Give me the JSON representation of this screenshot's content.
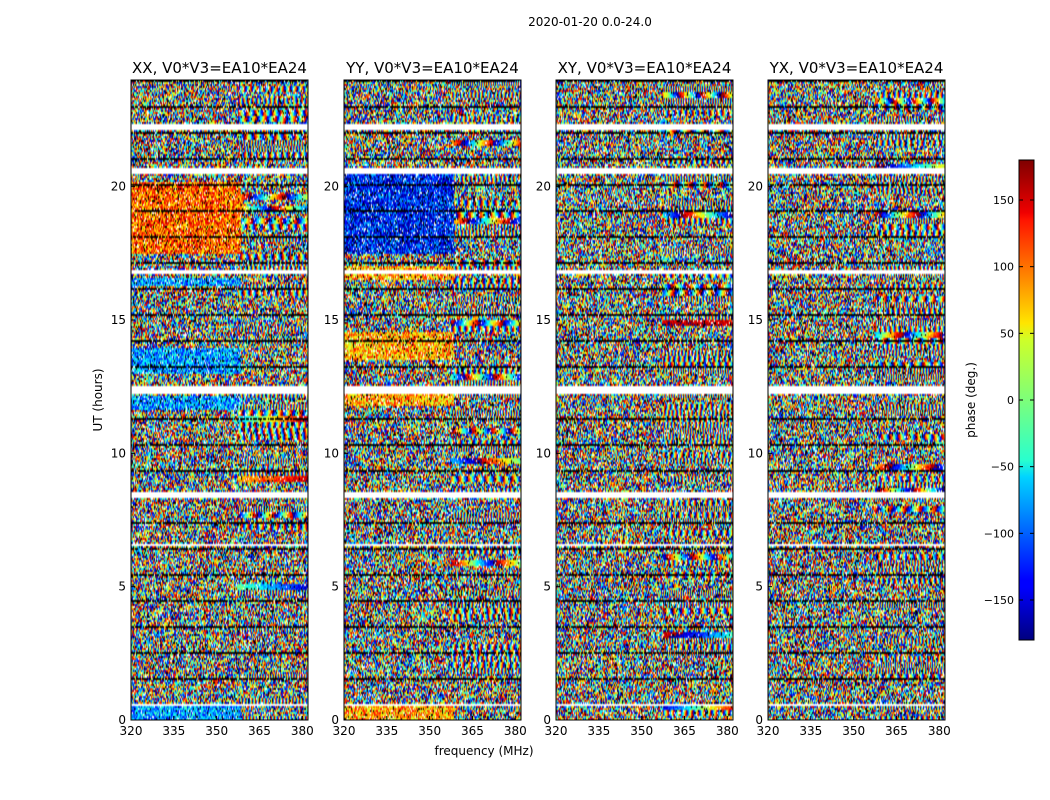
{
  "chart_data": {
    "type": "heatmap",
    "title": "2020-01-20 0.0-24.0",
    "xlabel": "frequency (MHz)",
    "ylabel": "UT (hours)",
    "xlim": [
      320,
      382
    ],
    "ylim": [
      0,
      24
    ],
    "x_ticks": [
      320,
      335,
      350,
      365,
      380
    ],
    "y_ticks": [
      0,
      5,
      10,
      15,
      20
    ],
    "panels": [
      {
        "name": "XX",
        "title": "XX, V0*V3=EA10*EA24"
      },
      {
        "name": "YY",
        "title": "YY, V0*V3=EA10*EA24"
      },
      {
        "name": "XY",
        "title": "XY, V0*V3=EA10*EA24"
      },
      {
        "name": "YX",
        "title": "YX, V0*V3=EA10*EA24"
      }
    ],
    "colorbar": {
      "label": "phase (deg.)",
      "range": [
        -180,
        180
      ],
      "ticks": [
        -150,
        -100,
        -50,
        0,
        50,
        100,
        150
      ],
      "tick_labels": [
        "−150",
        "−100",
        "−50",
        "0",
        "50",
        "100",
        "150"
      ],
      "colormap": "jet"
    },
    "flagged_ut_bands_hours": [
      [
        22.2,
        22.35
      ],
      [
        20.5,
        20.7
      ],
      [
        16.75,
        16.9
      ],
      [
        12.3,
        12.6
      ],
      [
        8.35,
        8.55
      ],
      [
        6.55,
        6.65
      ],
      [
        0.55,
        0.65
      ]
    ]
  }
}
